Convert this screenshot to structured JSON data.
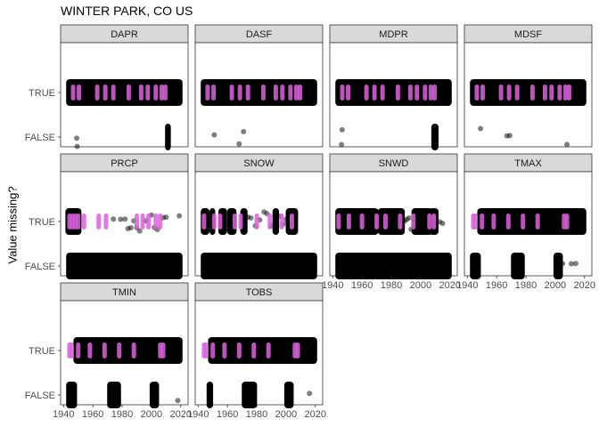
{
  "chart_data": {
    "type": "scatter",
    "title": "WINTER PARK, CO US",
    "xlabel": "",
    "ylabel": "Value missing?",
    "categories": [
      "TRUE",
      "FALSE"
    ],
    "xlim": [
      1938,
      2025
    ],
    "x_ticks": [
      "1940",
      "1960",
      "1980",
      "2000",
      "2020"
    ],
    "grid": false,
    "colors": {
      "point": "#000000",
      "highlight": "#DA62DA",
      "strip": "#D9D9D9",
      "border": "#333333"
    },
    "panels": [
      {
        "name": "DAPR",
        "true_bands": [
          [
            1943,
            2020
          ]
        ],
        "true_magenta": [
          1946.5,
          1950.5,
          1963,
          1968.5,
          1974,
          1984.5,
          1993,
          1997.5,
          2003,
          2007,
          2009.5
        ],
        "true_sparse": [
          1969,
          1983,
          2003,
          2005,
          2010
        ],
        "false_bands": [
          [
            2010.5,
            2012
          ]
        ],
        "false_points": [
          1949,
          1949.3
        ]
      },
      {
        "name": "DASF",
        "true_bands": [
          [
            1943,
            2020
          ]
        ],
        "true_magenta": [
          1946.5,
          1950.5,
          1963,
          1968.5,
          1974,
          1984.5,
          1993,
          1997.5,
          2003,
          2007,
          2009.5
        ],
        "true_sparse": [
          1958,
          1983,
          2004
        ],
        "false_bands": [],
        "false_points": [
          1951,
          1968,
          1971
        ]
      },
      {
        "name": "MDPR",
        "true_bands": [
          [
            1943,
            2020
          ]
        ],
        "true_magenta": [
          1946.5,
          1950.5,
          1963,
          1968.5,
          1974,
          1984.5,
          1993,
          1997.5,
          2003,
          2007,
          2009.5
        ],
        "true_sparse": [
          1969,
          1985,
          2004
        ],
        "false_bands": [
          [
            2008.5,
            2011
          ]
        ],
        "false_points": [
          1946,
          1946.4
        ]
      },
      {
        "name": "MDSF",
        "true_bands": [
          [
            1943,
            2020
          ]
        ],
        "true_magenta": [
          1946.5,
          1950.5,
          1963,
          1968.5,
          1974,
          1984.5,
          1993,
          1997.5,
          2003,
          2007,
          2009.5
        ],
        "true_sparse": [
          1980,
          2005
        ],
        "false_points": [
          1949,
          1967,
          1969,
          2008
        ],
        "false_bands": []
      },
      {
        "name": "PRCP",
        "true_bands": [
          [
            1942.5,
            1951
          ]
        ],
        "true_magenta": [
          1944,
          1946,
          1948,
          1950,
          1954,
          1964,
          1969,
          1990,
          1994,
          1998,
          2003,
          2006
        ],
        "true_sparse": [
          1974,
          1979,
          1982,
          1984,
          1986,
          1988,
          1990,
          1992,
          1996,
          2000,
          2002,
          2004,
          2008,
          2010,
          2019
        ],
        "false_bands": [
          [
            1943,
            2020
          ]
        ],
        "false_points": []
      },
      {
        "name": "SNOW",
        "true_bands": [
          [
            1943,
            1946.5
          ],
          [
            1949,
            1950.5
          ],
          [
            1955,
            1958.5
          ],
          [
            1961,
            1965
          ],
          [
            1970,
            1972.5
          ],
          [
            1992,
            1994
          ],
          [
            2001,
            2007
          ]
        ],
        "true_magenta": [
          1944,
          1951,
          1955,
          1965,
          1969,
          1980,
          1989,
          1997,
          2004
        ],
        "true_sparse": [
          1974,
          1976,
          1979,
          1982,
          1985,
          1987,
          1990,
          1996,
          1998,
          2000
        ],
        "false_bands": [
          [
            1943,
            2020
          ]
        ],
        "false_points": []
      },
      {
        "name": "SNWD",
        "true_bands": [
          [
            1943,
            1970
          ],
          [
            1972,
            1988
          ],
          [
            1995,
            2007
          ],
          [
            2007,
            2011
          ]
        ],
        "true_magenta": [
          1944,
          1951,
          1960,
          1970,
          1976,
          1986,
          1995,
          2006,
          2009
        ],
        "true_sparse": [
          1989,
          1990.5,
          1992,
          1993.5,
          2013,
          2015
        ],
        "false_bands": [
          [
            1943,
            2020
          ]
        ],
        "false_points": []
      },
      {
        "name": "TMAX",
        "true_bands": [
          [
            1948,
            2020
          ]
        ],
        "true_magenta": [
          1944,
          1945.5,
          1950,
          1958,
          1968,
          1978,
          1988,
          2006,
          2008
        ],
        "true_sparse": [
          1957,
          1973,
          1985,
          2003
        ],
        "false_bands": [
          [
            1943,
            1948
          ],
          [
            1971,
            1978
          ],
          [
            2000,
            2004
          ]
        ],
        "false_points": [
          2005,
          2011,
          2014
        ]
      },
      {
        "name": "TMIN",
        "true_bands": [
          [
            1948,
            2020
          ]
        ],
        "true_magenta": [
          1944,
          1945.5,
          1950,
          1958,
          1968,
          1978,
          1988,
          2006,
          2008
        ],
        "true_sparse": [
          1955,
          1969,
          1983,
          2000
        ],
        "false_bands": [
          [
            1943,
            1948
          ],
          [
            1971,
            1978
          ],
          [
            2000,
            2004
          ]
        ],
        "false_points": [
          2018
        ]
      },
      {
        "name": "TOBS",
        "true_bands": [
          [
            1948,
            2020
          ]
        ],
        "true_magenta": [
          1944,
          1945.5,
          1950,
          1958,
          1968,
          1978,
          1988,
          2006,
          2008
        ],
        "true_sparse": [
          1963,
          1982,
          2002
        ],
        "false_bands": [
          [
            1947,
            1949
          ],
          [
            1971,
            1979
          ],
          [
            2000,
            2004
          ]
        ],
        "false_points": [
          2016
        ]
      }
    ]
  }
}
